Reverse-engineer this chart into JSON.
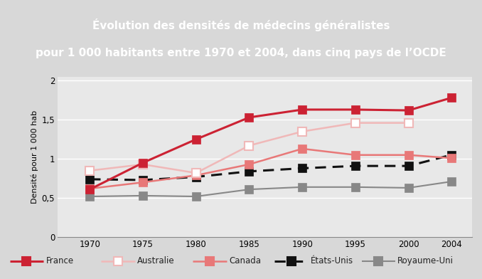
{
  "title_line1": "Évolution des densités de médecins généralistes",
  "title_line2": "pour 1 000 habitants entre 1970 et 2004, dans cinq pays de l’OCDE",
  "title_bg": "#cc3344",
  "title_color": "#ffffff",
  "ylabel": "Densité pour 1 000 hab",
  "years": [
    1970,
    1975,
    1980,
    1985,
    1990,
    1995,
    2000,
    2004
  ],
  "france": [
    0.61,
    0.95,
    1.25,
    1.53,
    1.63,
    1.63,
    1.62,
    1.78
  ],
  "australie": [
    0.85,
    0.93,
    0.82,
    1.17,
    1.35,
    1.46,
    1.46,
    null
  ],
  "canada": [
    0.62,
    0.7,
    0.79,
    0.93,
    1.13,
    1.05,
    1.05,
    1.01
  ],
  "etats_unis": [
    0.74,
    0.73,
    0.77,
    0.84,
    0.88,
    0.91,
    0.91,
    1.05
  ],
  "royaume_uni": [
    0.52,
    0.53,
    0.52,
    0.61,
    0.64,
    0.64,
    0.63,
    0.71
  ],
  "france_color": "#cc2233",
  "australie_color": "#f0b8b8",
  "canada_color": "#e87878",
  "etats_unis_color": "#111111",
  "royaume_uni_color": "#888888",
  "outer_bg": "#d8d8d8",
  "plot_bg": "#e8e8e8",
  "ylim": [
    0,
    2.05
  ],
  "yticks": [
    0,
    0.5,
    1.0,
    1.5,
    2.0
  ],
  "ytick_labels": [
    "0",
    "0,5",
    "1",
    "1,5",
    "2"
  ]
}
